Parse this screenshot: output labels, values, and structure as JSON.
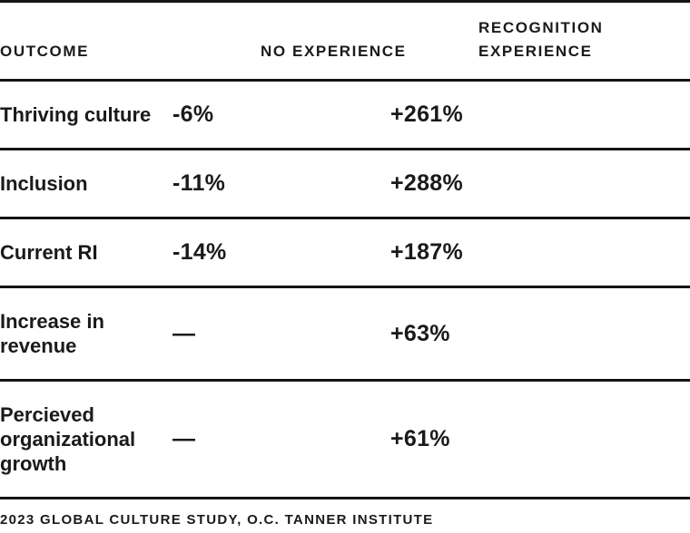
{
  "chart_data": {
    "type": "table",
    "columns": [
      "OUTCOME",
      "NO EXPERIENCE",
      "RECOGNITION EXPERIENCE"
    ],
    "rows": [
      [
        "Thriving culture",
        "-6%",
        "+261%"
      ],
      [
        "Inclusion",
        "-11%",
        "+288%"
      ],
      [
        "Current RI",
        "-14%",
        "+187%"
      ],
      [
        "Increase in revenue",
        "—",
        "+63%"
      ],
      [
        "Percieved organizational growth",
        "—",
        "+61%"
      ]
    ],
    "source": "2023 GLOBAL CULTURE STUDY, O.C. TANNER INSTITUTE",
    "layout": {
      "grid": "horizontal-rules-only",
      "legend": "none",
      "column_alignment": [
        "left",
        "left",
        "left"
      ]
    },
    "colors": {
      "text": "#1a1a19",
      "rule": "#141414",
      "background": "#ffffff"
    }
  }
}
